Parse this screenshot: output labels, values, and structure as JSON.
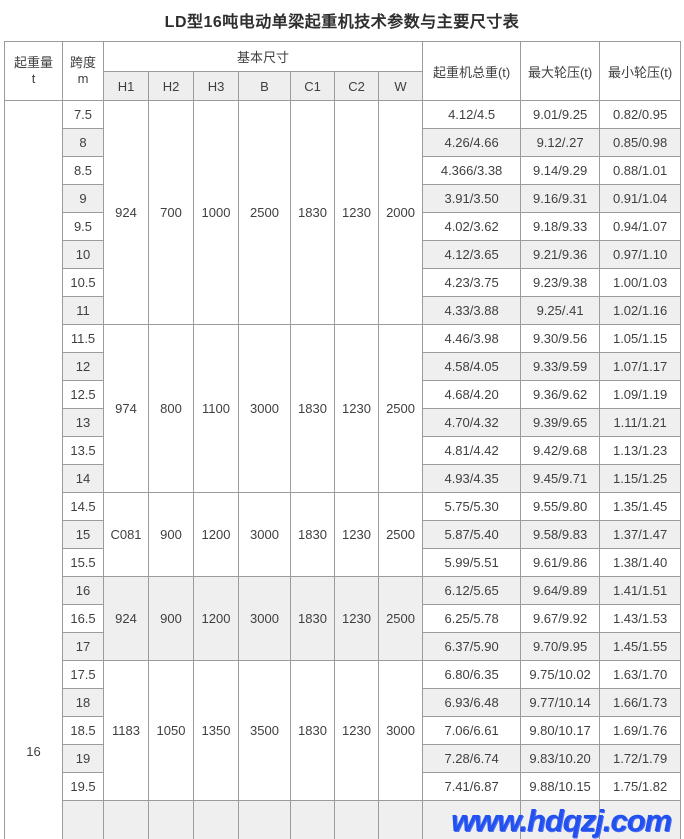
{
  "page": {
    "title": "LD型16吨电动单梁起重机技术参数与主要尺寸表",
    "watermark": "www.hdqzj.com"
  },
  "colors": {
    "row_alt_gray": "#efefef",
    "header_sub_gray": "#eeeeee",
    "border_gray": "#9b9b9b",
    "text_gray": "#3f3f3f",
    "watermark_blue": "#2251f0"
  },
  "table": {
    "header": {
      "capacity": "起重量",
      "capacity_unit": "t",
      "span": "跨度",
      "span_unit": "m",
      "basic_dims_group": "基本尺寸",
      "dim_cols": [
        "H1",
        "H2",
        "H3",
        "B",
        "C1",
        "C2",
        "W"
      ],
      "total_weight": "起重机总重(t)",
      "max_wheel": "最大轮压(t)",
      "min_wheel": "最小轮压(t)"
    },
    "capacity_value": "16",
    "blocks": [
      {
        "dims": [
          "924",
          "700",
          "1000",
          "2500",
          "1830",
          "1230",
          "2000"
        ],
        "rows": [
          {
            "span": "7.5",
            "total": "4.12/4.5",
            "max": "9.01/9.25",
            "min": "0.82/0.95"
          },
          {
            "span": "8",
            "total": "4.26/4.66",
            "max": "9.12/.27",
            "min": "0.85/0.98"
          },
          {
            "span": "8.5",
            "total": "4.366/3.38",
            "max": "9.14/9.29",
            "min": "0.88/1.01"
          },
          {
            "span": "9",
            "total": "3.91/3.50",
            "max": "9.16/9.31",
            "min": "0.91/1.04"
          },
          {
            "span": "9.5",
            "total": "4.02/3.62",
            "max": "9.18/9.33",
            "min": "0.94/1.07"
          },
          {
            "span": "10",
            "total": "4.12/3.65",
            "max": "9.21/9.36",
            "min": "0.97/1.10"
          },
          {
            "span": "10.5",
            "total": "4.23/3.75",
            "max": "9.23/9.38",
            "min": "1.00/1.03"
          },
          {
            "span": "11",
            "total": "4.33/3.88",
            "max": "9.25/.41",
            "min": "1.02/1.16"
          }
        ]
      },
      {
        "dims": [
          "974",
          "800",
          "1100",
          "3000",
          "1830",
          "1230",
          "2500"
        ],
        "rows": [
          {
            "span": "11.5",
            "total": "4.46/3.98",
            "max": "9.30/9.56",
            "min": "1.05/1.15"
          },
          {
            "span": "12",
            "total": "4.58/4.05",
            "max": "9.33/9.59",
            "min": "1.07/1.17"
          },
          {
            "span": "12.5",
            "total": "4.68/4.20",
            "max": "9.36/9.62",
            "min": "1.09/1.19"
          },
          {
            "span": "13",
            "total": "4.70/4.32",
            "max": "9.39/9.65",
            "min": "1.11/1.21"
          },
          {
            "span": "13.5",
            "total": "4.81/4.42",
            "max": "9.42/9.68",
            "min": "1.13/1.23"
          },
          {
            "span": "14",
            "total": "4.93/4.35",
            "max": "9.45/9.71",
            "min": "1.15/1.25"
          }
        ]
      },
      {
        "dims": [
          "C081",
          "900",
          "1200",
          "3000",
          "1830",
          "1230",
          "2500"
        ],
        "rows": [
          {
            "span": "14.5",
            "total": "5.75/5.30",
            "max": "9.55/9.80",
            "min": "1.35/1.45"
          },
          {
            "span": "15",
            "total": "5.87/5.40",
            "max": "9.58/9.83",
            "min": "1.37/1.47"
          },
          {
            "span": "15.5",
            "total": "5.99/5.51",
            "max": "9.61/9.86",
            "min": "1.38/1.40"
          }
        ]
      },
      {
        "dims": [
          "924",
          "900",
          "1200",
          "3000",
          "1830",
          "1230",
          "2500"
        ],
        "rows": [
          {
            "span": "16",
            "total": "6.12/5.65",
            "max": "9.64/9.89",
            "min": "1.41/1.51"
          },
          {
            "span": "16.5",
            "total": "6.25/5.78",
            "max": "9.67/9.92",
            "min": "1.43/1.53"
          },
          {
            "span": "17",
            "total": "6.37/5.90",
            "max": "9.70/9.95",
            "min": "1.45/1.55"
          }
        ]
      },
      {
        "dims": [
          "1183",
          "1050",
          "1350",
          "3500",
          "1830",
          "1230",
          "3000"
        ],
        "rows": [
          {
            "span": "17.5",
            "total": "6.80/6.35",
            "max": "9.75/10.02",
            "min": "1.63/1.70"
          },
          {
            "span": "18",
            "total": "6.93/6.48",
            "max": "9.77/10.14",
            "min": "1.66/1.73"
          },
          {
            "span": "18.5",
            "total": "7.06/6.61",
            "max": "9.80/10.17",
            "min": "1.69/1.76"
          },
          {
            "span": "19",
            "total": "7.28/6.74",
            "max": "9.83/10.20",
            "min": "1.72/1.79"
          },
          {
            "span": "19.5",
            "total": "7.41/6.87",
            "max": "9.88/10.15",
            "min": "1.75/1.82"
          }
        ]
      }
    ]
  }
}
